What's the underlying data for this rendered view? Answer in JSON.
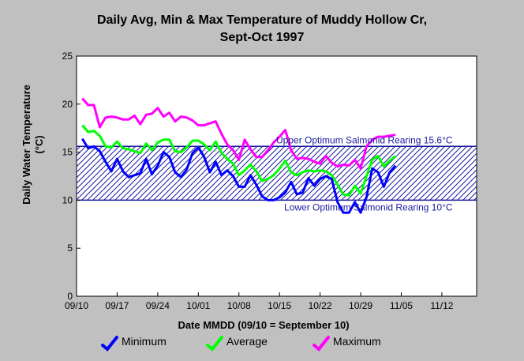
{
  "chart_data": {
    "type": "line",
    "title": "Daily Avg, Min & Max Temperature of Muddy Hollow Cr,",
    "subtitle": "Sept-Oct 1997",
    "xlabel": "Date MMDD (09/10 = September 10)",
    "ylabel": "Daily Water Temperature",
    "yunit": "(°C)",
    "xlim": [
      "1997-09-10",
      "1997-11-18"
    ],
    "ylim": [
      0,
      25
    ],
    "yticks": [
      0,
      5,
      10,
      15,
      20,
      25
    ],
    "xticks": [
      {
        "date": "1997-09-10",
        "label": "09/10"
      },
      {
        "date": "1997-09-17",
        "label": "09/17"
      },
      {
        "date": "1997-09-24",
        "label": "09/24"
      },
      {
        "date": "1997-10-01",
        "label": "10/01"
      },
      {
        "date": "1997-10-08",
        "label": "10/08"
      },
      {
        "date": "1997-10-15",
        "label": "10/15"
      },
      {
        "date": "1997-10-22",
        "label": "10/22"
      },
      {
        "date": "1997-10-29",
        "label": "10/29"
      },
      {
        "date": "1997-11-05",
        "label": "11/05"
      },
      {
        "date": "1997-11-12",
        "label": "11/12"
      }
    ],
    "grid": false,
    "legend_position": "bottom",
    "band": {
      "lower": 10,
      "upper": 15.6,
      "color": "#1a1aa0",
      "upper_label": "Upper Optimum Salmonid Rearing 15.6°C",
      "lower_label": "Lower Optimum Salmonid Rearing 10°C"
    },
    "x": [
      "1997-09-11",
      "1997-09-12",
      "1997-09-13",
      "1997-09-14",
      "1997-09-15",
      "1997-09-16",
      "1997-09-17",
      "1997-09-18",
      "1997-09-19",
      "1997-09-20",
      "1997-09-21",
      "1997-09-22",
      "1997-09-23",
      "1997-09-24",
      "1997-09-25",
      "1997-09-26",
      "1997-09-27",
      "1997-09-28",
      "1997-09-29",
      "1997-09-30",
      "1997-10-01",
      "1997-10-02",
      "1997-10-03",
      "1997-10-04",
      "1997-10-05",
      "1997-10-06",
      "1997-10-07",
      "1997-10-08",
      "1997-10-09",
      "1997-10-10",
      "1997-10-11",
      "1997-10-12",
      "1997-10-13",
      "1997-10-14",
      "1997-10-15",
      "1997-10-16",
      "1997-10-17",
      "1997-10-18",
      "1997-10-19",
      "1997-10-20",
      "1997-10-21",
      "1997-10-22",
      "1997-10-23",
      "1997-10-24",
      "1997-10-25",
      "1997-10-26",
      "1997-10-27",
      "1997-10-28",
      "1997-10-29",
      "1997-10-30",
      "1997-10-31",
      "1997-11-01",
      "1997-11-02",
      "1997-11-03",
      "1997-11-04"
    ],
    "series": [
      {
        "name": "Minimum",
        "color": "#0000ff",
        "values": [
          16.4,
          15.4,
          15.6,
          15.1,
          14.0,
          13.0,
          14.3,
          13.0,
          12.4,
          12.6,
          12.8,
          14.3,
          12.7,
          13.6,
          15.0,
          14.5,
          12.9,
          12.4,
          13.2,
          14.9,
          15.5,
          14.5,
          12.9,
          14.0,
          12.6,
          13.1,
          12.5,
          11.4,
          11.4,
          12.6,
          11.6,
          10.4,
          10.0,
          10.0,
          10.3,
          10.8,
          11.9,
          10.6,
          10.8,
          12.3,
          11.5,
          12.2,
          12.5,
          12.2,
          9.8,
          8.7,
          8.7,
          9.8,
          8.7,
          10.3,
          13.3,
          12.9,
          11.4,
          12.9,
          13.6
        ]
      },
      {
        "name": "Average",
        "color": "#00ff00",
        "values": [
          17.8,
          17.1,
          17.2,
          16.7,
          15.6,
          15.5,
          16.1,
          15.4,
          15.3,
          15.1,
          14.9,
          15.9,
          15.2,
          16.0,
          16.3,
          16.3,
          15.1,
          15.0,
          15.5,
          16.2,
          16.2,
          15.8,
          15.2,
          16.1,
          14.9,
          14.3,
          13.8,
          12.6,
          13.1,
          13.7,
          13.0,
          12.0,
          12.2,
          12.6,
          13.3,
          14.1,
          12.9,
          12.6,
          12.9,
          13.1,
          13.0,
          13.1,
          13.0,
          12.6,
          11.6,
          10.6,
          10.5,
          11.5,
          10.7,
          12.5,
          14.2,
          14.6,
          13.5,
          14.1,
          14.6
        ]
      },
      {
        "name": "Maximum",
        "color": "#ff00ff",
        "values": [
          20.6,
          19.9,
          19.9,
          17.6,
          18.6,
          18.7,
          18.6,
          18.4,
          18.4,
          18.8,
          17.9,
          18.9,
          19.0,
          19.6,
          18.7,
          19.1,
          18.2,
          18.7,
          18.6,
          18.3,
          17.8,
          17.8,
          18.0,
          18.2,
          16.9,
          15.8,
          15.2,
          14.2,
          16.3,
          15.3,
          14.5,
          14.5,
          15.2,
          16.0,
          16.6,
          17.3,
          15.2,
          14.3,
          14.4,
          14.3,
          14.0,
          13.8,
          14.6,
          13.9,
          13.5,
          13.7,
          13.6,
          14.2,
          13.3,
          15.6,
          16.3,
          16.6,
          16.6,
          16.7,
          16.8
        ]
      }
    ]
  }
}
